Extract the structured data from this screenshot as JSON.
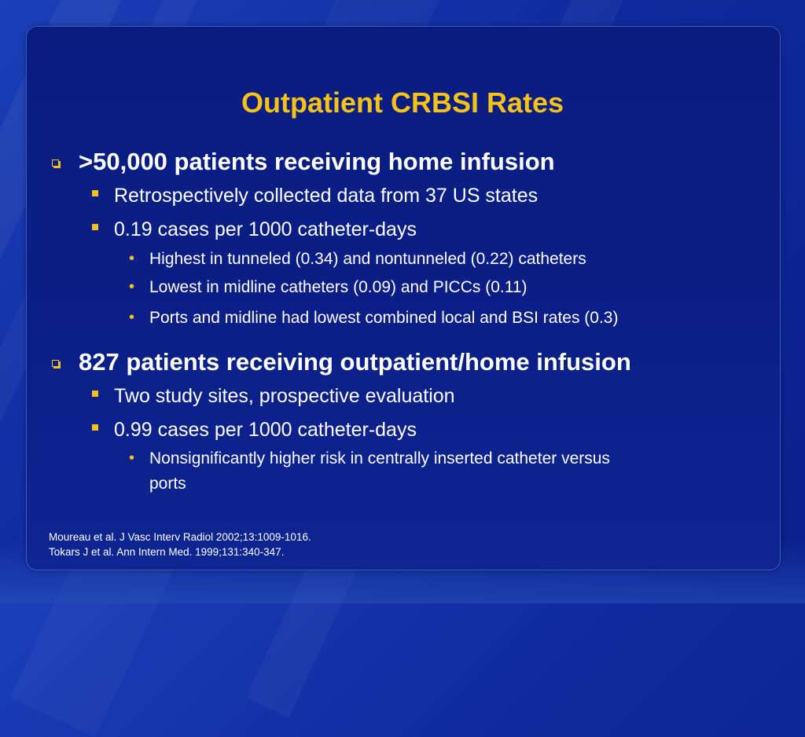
{
  "slide": {
    "title": "Outpatient CRBSI Rates",
    "sections": [
      {
        "heading": ">50,000 patients receiving home infusion",
        "sub": [
          {
            "text": "Retrospectively collected data from 37 US states",
            "details": []
          },
          {
            "text": "0.19 cases per 1000 catheter-days",
            "details": [
              "Highest in tunneled (0.34) and nontunneled (0.22) catheters",
              "Lowest in midline catheters (0.09) and PICCs (0.11)",
              "Ports and midline had lowest combined local and BSI rates (0.3)"
            ]
          }
        ]
      },
      {
        "heading": "827 patients receiving outpatient/home infusion",
        "sub": [
          {
            "text": "Two study sites, prospective evaluation",
            "details": []
          },
          {
            "text": "0.99 cases per 1000 catheter-days",
            "details": [
              "Nonsignificantly higher risk in centrally inserted catheter versus",
              "ports"
            ]
          }
        ]
      }
    ],
    "references": [
      "Moureau et al. J Vasc Interv Radiol 2002;13:1009-1016.",
      "Tokars J et al. Ann Intern Med. 1999;131:340-347."
    ],
    "colors": {
      "title": "#f5c218",
      "text": "#ffffff",
      "background": "#0b1f88"
    }
  }
}
